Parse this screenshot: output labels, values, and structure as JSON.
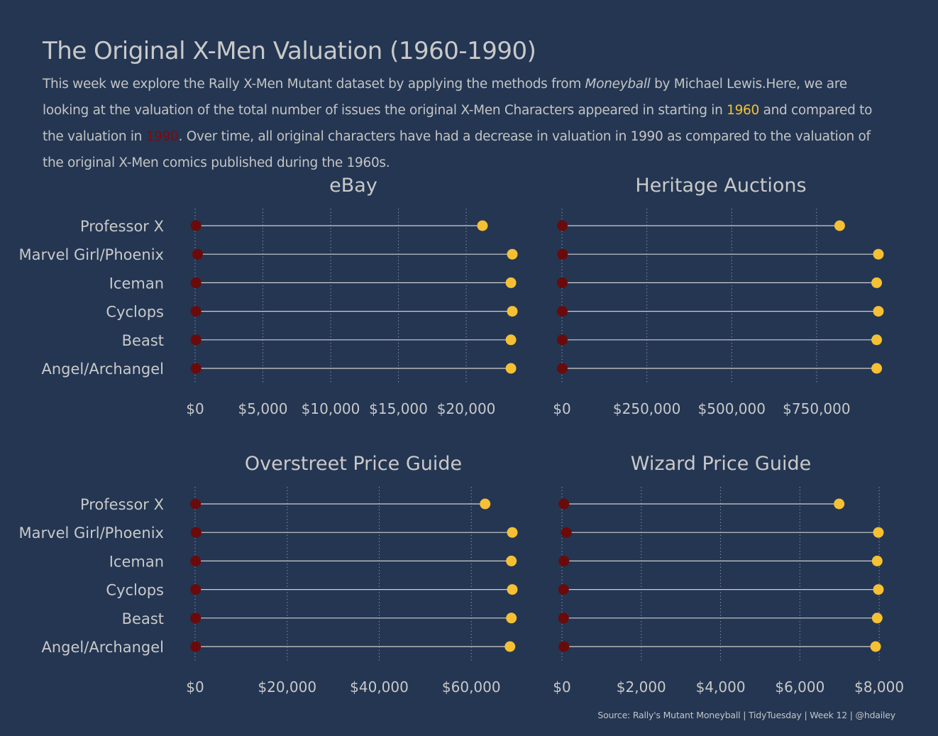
{
  "title": "The Original X-Men Valuation (1960-1990)",
  "subtitle": {
    "part1": "This week we explore the Rally X-Men Mutant dataset by applying the methods from ",
    "book": "Moneyball",
    "part2": " by Michael Lewis.Here, we are looking at the valuation of the total number of issues the original X-Men Characters appeared in starting in ",
    "year_start": "1960",
    "part3": " and compared to the valuation in ",
    "year_end": "1990",
    "part4": ". Over time, all original characters have had a decrease in valuation in 1990 as compared to the valuation of the original X-Men comics published during the 1960s."
  },
  "caption": "Source: Rally's Mutant Moneyball | TidyTuesday | Week 12 | @hdailey",
  "colors": {
    "background": "#243652",
    "value_1960": "#f5c033",
    "value_1990": "#6b0a0a",
    "segment": "#d0d0d0",
    "grid": "#7d8da6",
    "text": "#c9c9c9"
  },
  "chart_data": [
    {
      "type": "dumbbell",
      "title": "eBay",
      "categories": [
        "Professor X",
        "Marvel Girl/Phoenix",
        "Iceman",
        "Cyclops",
        "Beast",
        "Angel/Archangel"
      ],
      "series": [
        {
          "name": "1960",
          "values": [
            21200,
            23400,
            23300,
            23400,
            23300,
            23300
          ]
        },
        {
          "name": "1990",
          "values": [
            60,
            180,
            60,
            60,
            60,
            60
          ]
        }
      ],
      "xlim": [
        0,
        23400
      ],
      "xticks": [
        0,
        5000,
        10000,
        15000,
        20000
      ],
      "xtick_labels": [
        "$0",
        "$5,000",
        "$10,000",
        "$15,000",
        "$20,000"
      ],
      "grid": "vertical-dotted"
    },
    {
      "type": "dumbbell",
      "title": "Heritage Auctions",
      "categories": [
        "Professor X",
        "Marvel Girl/Phoenix",
        "Iceman",
        "Cyclops",
        "Beast",
        "Angel/Archangel"
      ],
      "series": [
        {
          "name": "1960",
          "values": [
            818000,
            932000,
            927000,
            932000,
            927000,
            927000
          ]
        },
        {
          "name": "1990",
          "values": [
            1000,
            1500,
            1000,
            1000,
            1000,
            1000
          ]
        }
      ],
      "xlim": [
        0,
        932000
      ],
      "xticks": [
        0,
        250000,
        500000,
        750000
      ],
      "xtick_labels": [
        "$0",
        "$250,000",
        "$500,000",
        "$750,000"
      ],
      "grid": "vertical-dotted"
    },
    {
      "type": "dumbbell",
      "title": "Overstreet Price Guide",
      "categories": [
        "Professor X",
        "Marvel Girl/Phoenix",
        "Iceman",
        "Cyclops",
        "Beast",
        "Angel/Archangel"
      ],
      "series": [
        {
          "name": "1960",
          "values": [
            63000,
            68900,
            68700,
            68900,
            68700,
            68400
          ]
        },
        {
          "name": "1990",
          "values": [
            100,
            200,
            100,
            100,
            100,
            100
          ]
        }
      ],
      "xlim": [
        0,
        68900
      ],
      "xticks": [
        0,
        20000,
        40000,
        60000
      ],
      "xtick_labels": [
        "$0",
        "$20,000",
        "$40,000",
        "$60,000"
      ],
      "grid": "vertical-dotted"
    },
    {
      "type": "dumbbell",
      "title": "Wizard Price Guide",
      "categories": [
        "Professor X",
        "Marvel Girl/Phoenix",
        "Iceman",
        "Cyclops",
        "Beast",
        "Angel/Archangel"
      ],
      "series": [
        {
          "name": "1960",
          "values": [
            6990,
            7980,
            7950,
            7980,
            7950,
            7910
          ]
        },
        {
          "name": "1990",
          "values": [
            50,
            110,
            50,
            40,
            40,
            50
          ]
        }
      ],
      "xlim": [
        0,
        7980
      ],
      "xticks": [
        0,
        2000,
        4000,
        6000,
        8000
      ],
      "xtick_labels": [
        "$0",
        "$2,000",
        "$4,000",
        "$6,000",
        "$8,000"
      ],
      "grid": "vertical-dotted"
    }
  ]
}
